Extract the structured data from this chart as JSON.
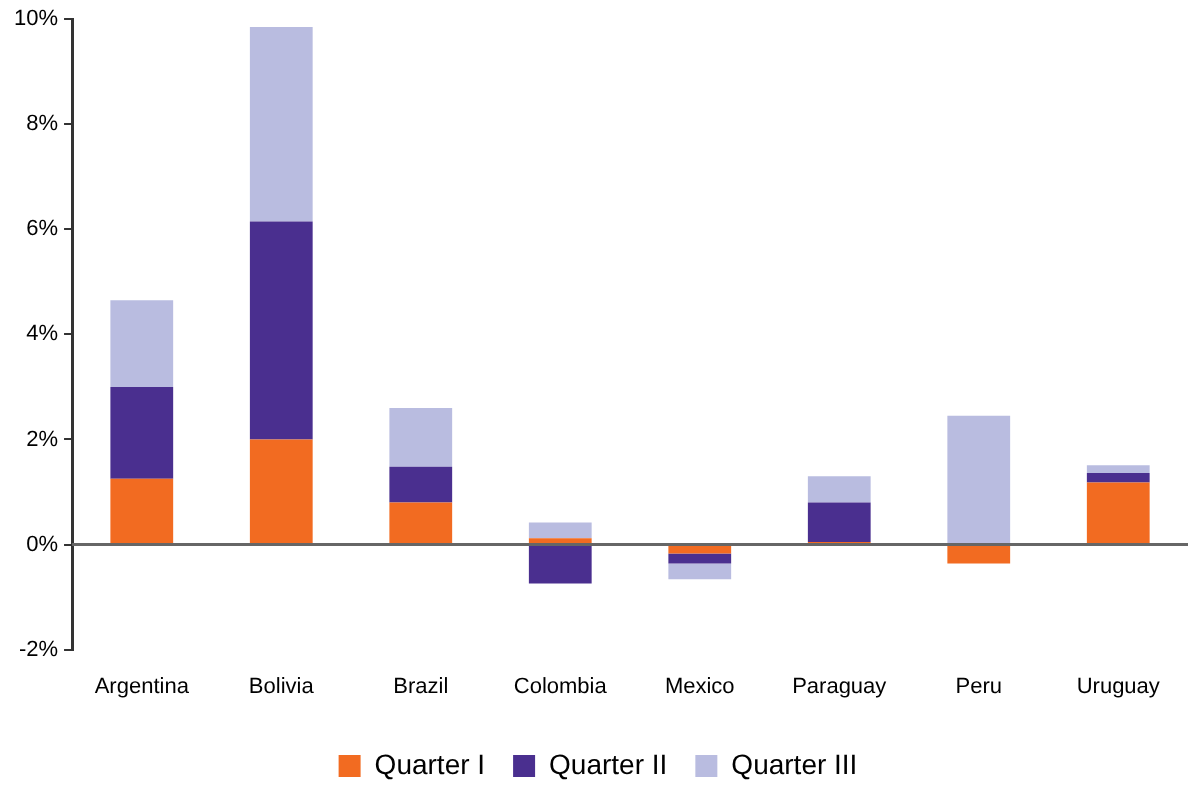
{
  "chart_data": {
    "type": "bar",
    "stacked": true,
    "categories": [
      "Argentina",
      "Bolivia",
      "Brazil",
      "Colombia",
      "Mexico",
      "Paraguay",
      "Peru",
      "Uruguay"
    ],
    "series": [
      {
        "name": "Quarter I",
        "color": "#f26b21",
        "values": [
          1.25,
          2.0,
          0.8,
          0.12,
          -0.17,
          0.05,
          -0.36,
          1.18
        ]
      },
      {
        "name": "Quarter II",
        "color": "#4a2f8f",
        "values": [
          1.75,
          4.15,
          0.68,
          -0.74,
          -0.19,
          0.75,
          0,
          0.18
        ]
      },
      {
        "name": "Quarter III",
        "color": "#b9bce0",
        "values": [
          1.65,
          3.7,
          1.12,
          0.3,
          -0.3,
          0.5,
          2.45,
          0.15
        ]
      }
    ],
    "ylim": [
      -2,
      10
    ],
    "yticks": [
      {
        "value": -2,
        "label": "-2%"
      },
      {
        "value": 0,
        "label": "0%"
      },
      {
        "value": 2,
        "label": "2%"
      },
      {
        "value": 4,
        "label": "4%"
      },
      {
        "value": 6,
        "label": "6%"
      },
      {
        "value": 8,
        "label": "8%"
      },
      {
        "value": 10,
        "label": "10%"
      }
    ],
    "legend": "bottom"
  }
}
